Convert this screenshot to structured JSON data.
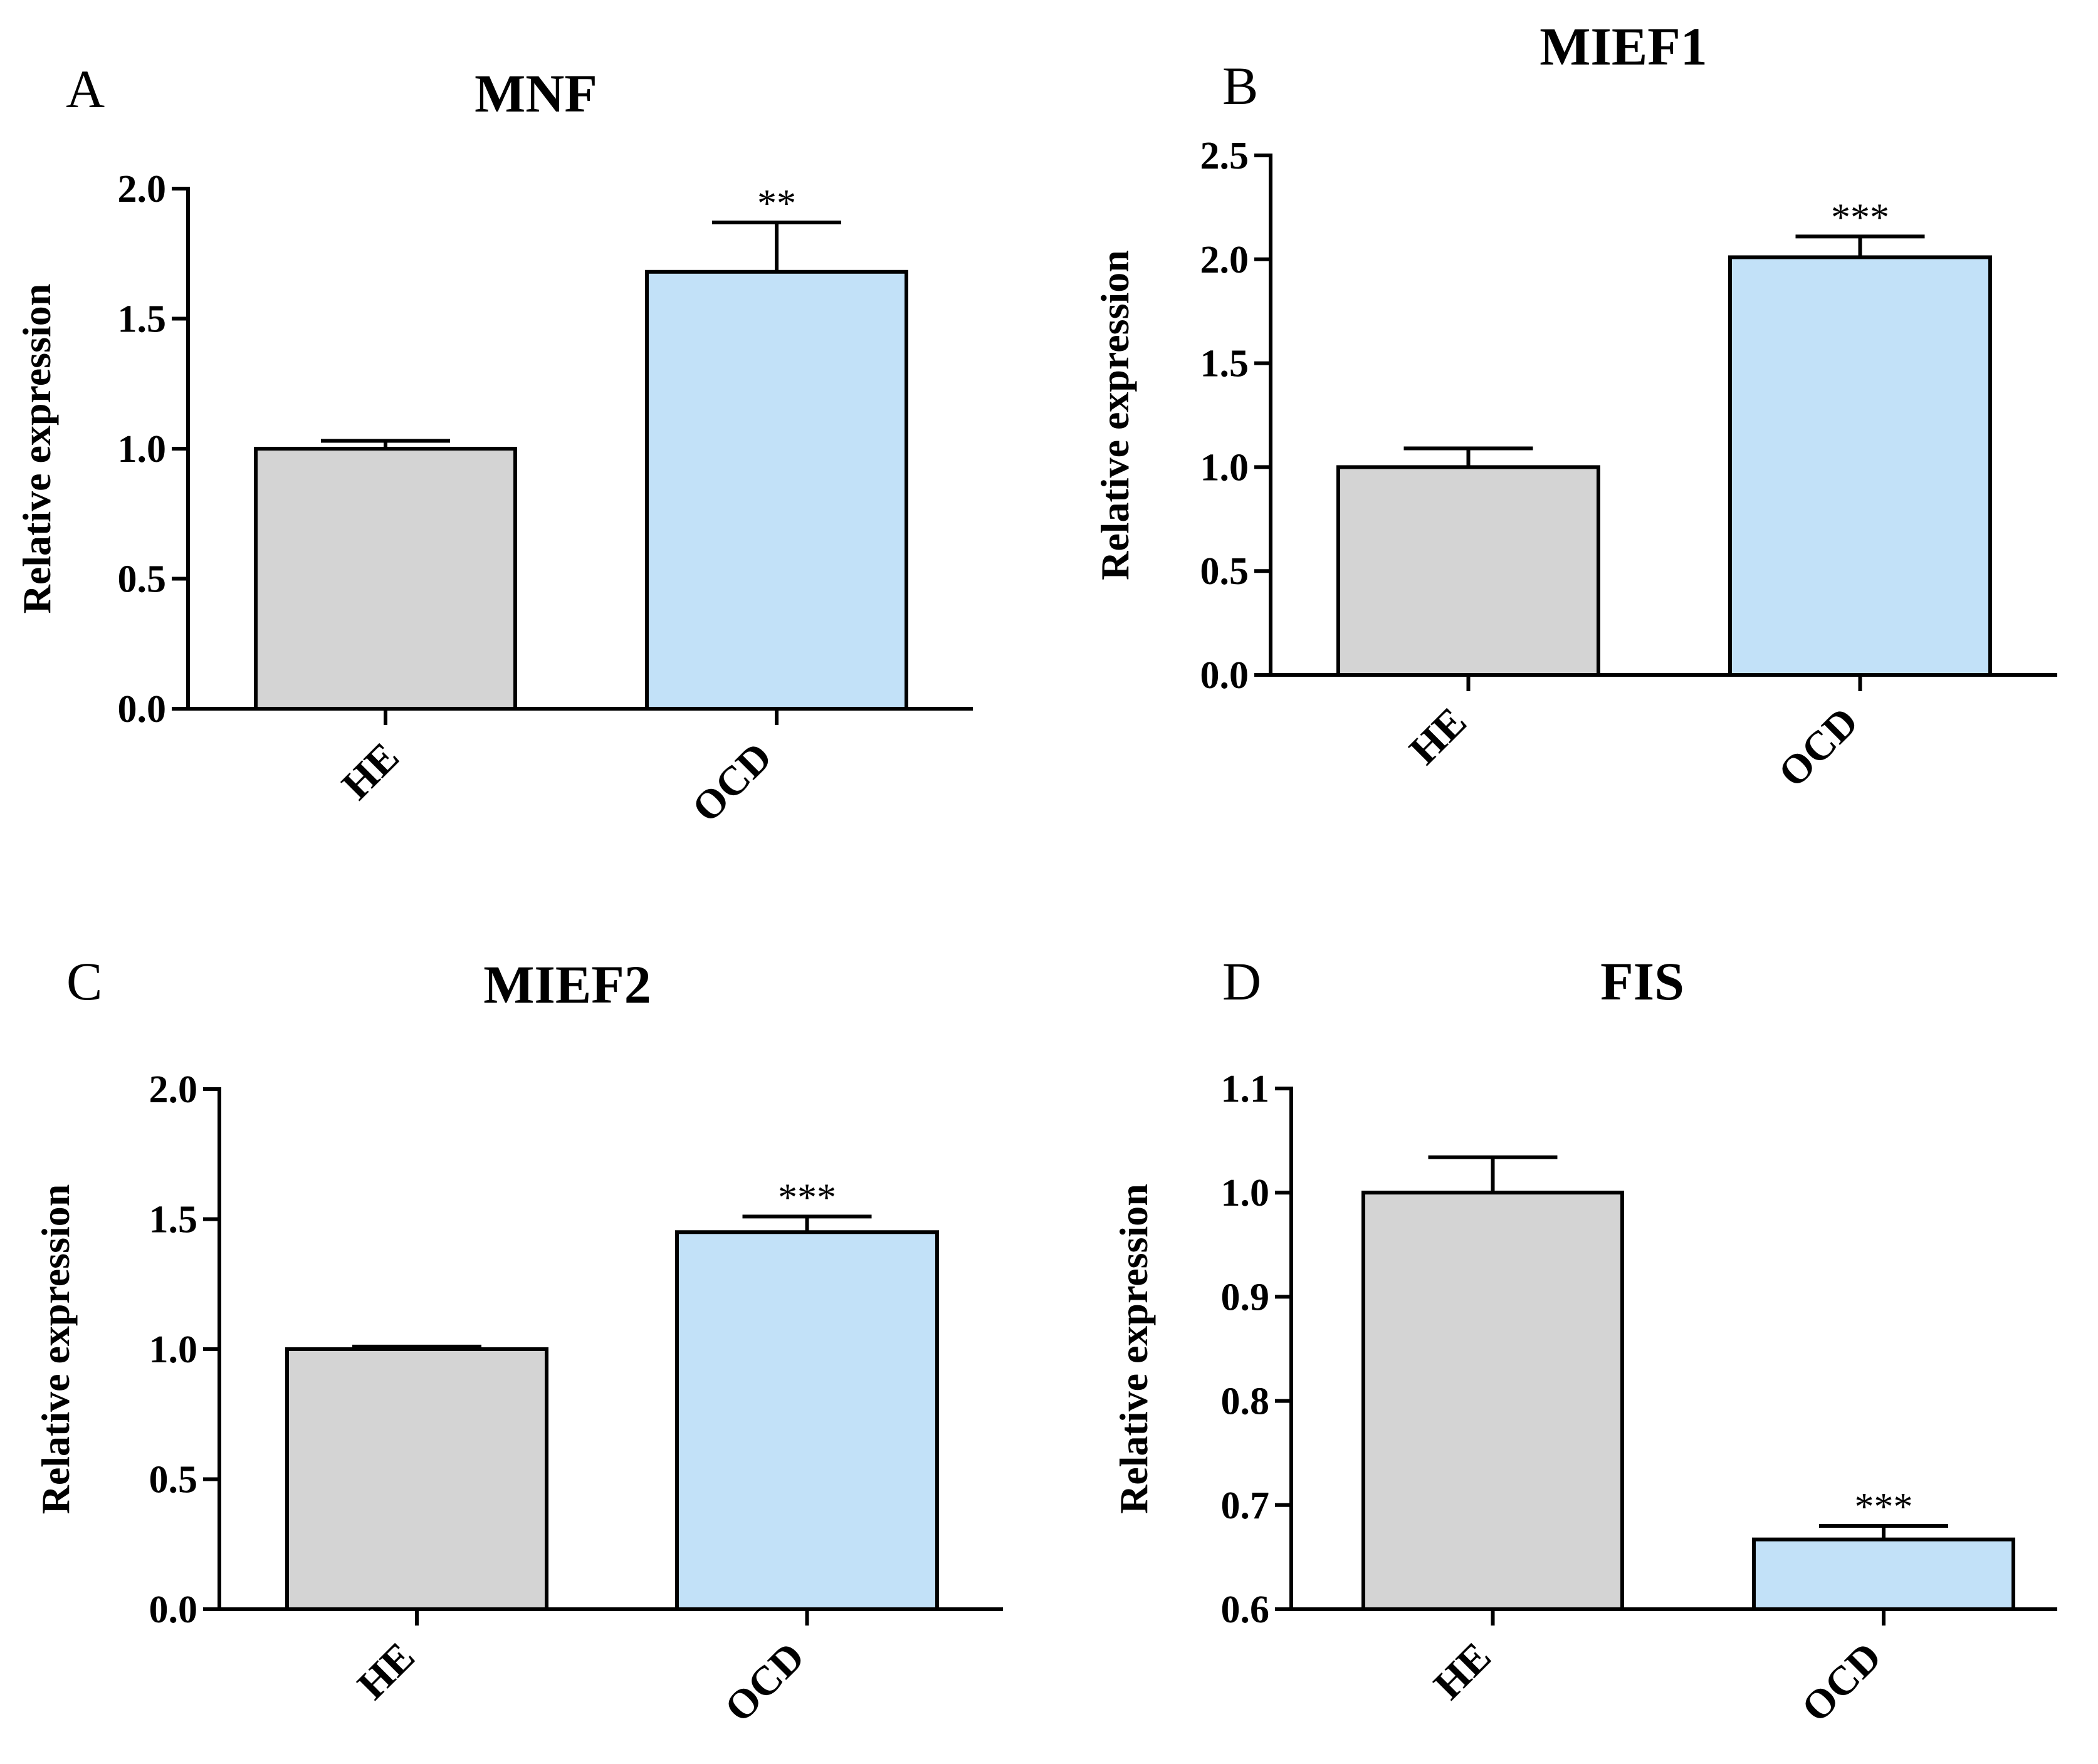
{
  "colors": {
    "HE": "#d4d4d4",
    "OCD": "#c2e1f8",
    "axis": "#000000"
  },
  "chart_data": [
    {
      "type": "bar",
      "panel": "A",
      "title": "MNF",
      "categories": [
        "HE",
        "OCD"
      ],
      "values": [
        1.0,
        1.68
      ],
      "errors": [
        0.03,
        0.19
      ],
      "significance": [
        "",
        "**"
      ],
      "ylabel": "Relative expression",
      "xlabel": "",
      "ylim": [
        0.0,
        2.0
      ],
      "yticks": [
        "0.0",
        "0.5",
        "1.0",
        "1.5",
        "2.0"
      ]
    },
    {
      "type": "bar",
      "panel": "B",
      "title": "MIEF1",
      "categories": [
        "HE",
        "OCD"
      ],
      "values": [
        1.0,
        2.01
      ],
      "errors": [
        0.09,
        0.1
      ],
      "significance": [
        "",
        "***"
      ],
      "ylabel": "Relative expression",
      "xlabel": "",
      "ylim": [
        0.0,
        2.5
      ],
      "yticks": [
        "0.0",
        "0.5",
        "1.0",
        "1.5",
        "2.0",
        "2.5"
      ]
    },
    {
      "type": "bar",
      "panel": "C",
      "title": "MIEF2",
      "categories": [
        "HE",
        "OCD"
      ],
      "values": [
        1.0,
        1.45
      ],
      "errors": [
        0.01,
        0.06
      ],
      "significance": [
        "",
        "***"
      ],
      "ylabel": "Relative expression",
      "xlabel": "",
      "ylim": [
        0.0,
        2.0
      ],
      "yticks": [
        "0.0",
        "0.5",
        "1.0",
        "1.5",
        "2.0"
      ]
    },
    {
      "type": "bar",
      "panel": "D",
      "title": "FIS",
      "categories": [
        "HE",
        "OCD"
      ],
      "values": [
        1.0,
        0.667
      ],
      "errors": [
        0.034,
        0.013
      ],
      "significance": [
        "",
        "***"
      ],
      "ylabel": "Relative expression",
      "xlabel": "",
      "ylim": [
        0.6,
        1.1
      ],
      "yticks": [
        "0.6",
        "0.7",
        "0.8",
        "0.9",
        "1.0",
        "1.1"
      ]
    }
  ]
}
